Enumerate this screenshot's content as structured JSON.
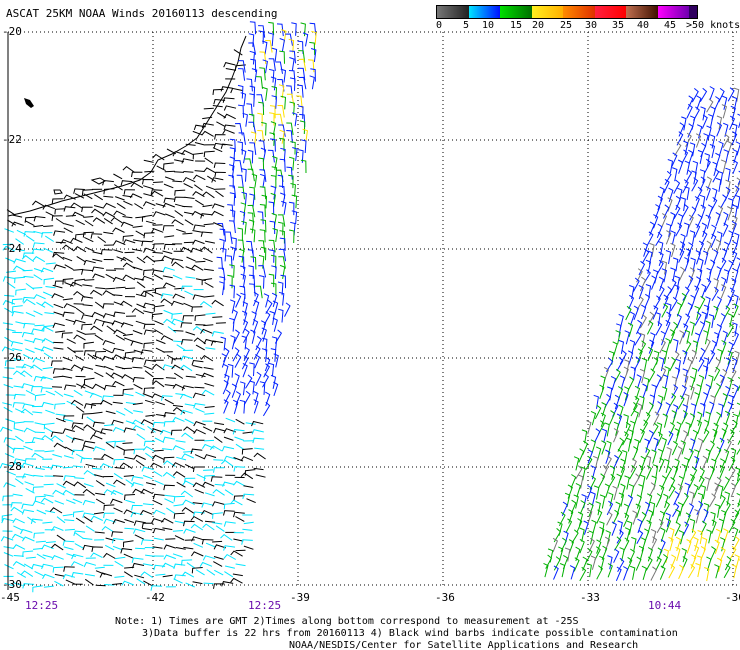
{
  "title": "ASCAT 25KM NOAA Winds 20160113 descending",
  "legend": {
    "labels": [
      "0",
      "5",
      "10",
      "15",
      "20",
      "25",
      "30",
      "35",
      "40",
      "45",
      ">50 knots"
    ],
    "colors": [
      "linear-gradient(90deg,#777,#222)",
      "linear-gradient(90deg,#00e5ff,#0010ff)",
      "linear-gradient(90deg,#00e000,#007000)",
      "linear-gradient(90deg,#fff020,#ffb000)",
      "linear-gradient(90deg,#ff8c00,#e03000)",
      "linear-gradient(90deg,#ff2040,#ff0000)",
      "linear-gradient(90deg,#c07050,#401000)",
      "linear-gradient(90deg,#ff00ff,#7000b0)",
      "linear-gradient(90deg,#300060,#300060)"
    ]
  },
  "axes": {
    "lat_labels": [
      "-20",
      "-22",
      "-24",
      "-26",
      "-28",
      "-30"
    ],
    "lon_labels": [
      "-45",
      "-42",
      "-39",
      "-36",
      "-33",
      "-30"
    ]
  },
  "times": [
    "12:25",
    "12:25",
    "10:44"
  ],
  "notes": [
    "Note: 1) Times are GMT 2)Times along bottom correspond to measurement at -25S",
    "3)Data buffer is 22 hrs from 20160113 4) Black wind barbs indicate possible contamination",
    "NOAA/NESDIS/Center for Satellite Applications and Research"
  ],
  "colors": {
    "black": "#000000",
    "cyan": "#00e5ff",
    "blue": "#0020ff",
    "green": "#00b000",
    "yellow": "#ffe000",
    "gray": "#777777",
    "time": "#6a0dad"
  }
}
